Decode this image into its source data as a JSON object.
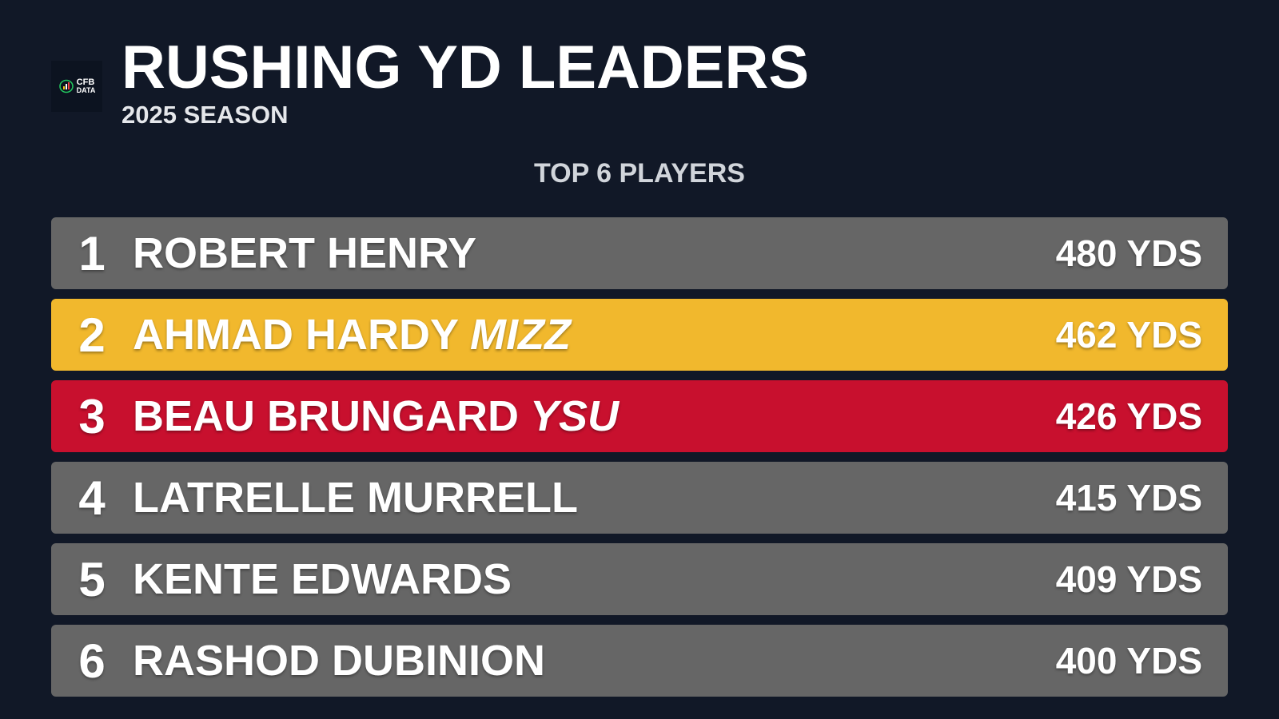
{
  "header": {
    "logo_line1": "CFB",
    "logo_line2": "DATA",
    "title": "RUSHING YD LEADERS",
    "subtitle": "2025 SEASON"
  },
  "section_label": "TOP 6 PLAYERS",
  "leaders": [
    {
      "rank": "1",
      "name": "ROBERT HENRY",
      "team": "",
      "yards": "480 YDS",
      "color": "#666666"
    },
    {
      "rank": "2",
      "name": "AHMAD HARDY",
      "team": "MIZZ",
      "yards": "462 YDS",
      "color": "#f1b82d"
    },
    {
      "rank": "3",
      "name": "BEAU BRUNGARD",
      "team": "YSU",
      "yards": "426 YDS",
      "color": "#c8102e"
    },
    {
      "rank": "4",
      "name": "LATRELLE MURRELL",
      "team": "",
      "yards": "415 YDS",
      "color": "#666666"
    },
    {
      "rank": "5",
      "name": "KENTE EDWARDS",
      "team": "",
      "yards": "409 YDS",
      "color": "#666666"
    },
    {
      "rank": "6",
      "name": "RASHOD DUBINION",
      "team": "",
      "yards": "400 YDS",
      "color": "#666666"
    }
  ]
}
